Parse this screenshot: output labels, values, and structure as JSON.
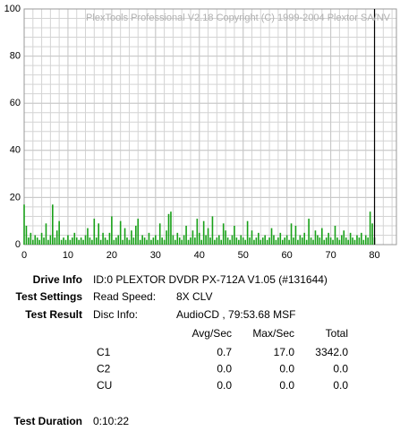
{
  "chart_data": {
    "type": "bar",
    "annotation": "PlexTools Professional V2.18 Copyright (C) 1999-2004 Plextor SA/NV",
    "x": [
      0,
      0.5,
      1,
      1.5,
      2,
      2.5,
      3,
      3.5,
      4,
      4.5,
      5,
      5.5,
      6,
      6.5,
      7,
      7.5,
      8,
      8.5,
      9,
      9.5,
      10,
      10.5,
      11,
      11.5,
      12,
      12.5,
      13,
      13.5,
      14,
      14.5,
      15,
      15.5,
      16,
      16.5,
      17,
      17.5,
      18,
      18.5,
      19,
      19.5,
      20,
      20.5,
      21,
      21.5,
      22,
      22.5,
      23,
      23.5,
      24,
      24.5,
      25,
      25.5,
      26,
      26.5,
      27,
      27.5,
      28,
      28.5,
      29,
      29.5,
      30,
      30.5,
      31,
      31.5,
      32,
      32.5,
      33,
      33.5,
      34,
      34.5,
      35,
      35.5,
      36,
      36.5,
      37,
      37.5,
      38,
      38.5,
      39,
      39.5,
      40,
      40.5,
      41,
      41.5,
      42,
      42.5,
      43,
      43.5,
      44,
      44.5,
      45,
      45.5,
      46,
      46.5,
      47,
      47.5,
      48,
      48.5,
      49,
      49.5,
      50,
      50.5,
      51,
      51.5,
      52,
      52.5,
      53,
      53.5,
      54,
      54.5,
      55,
      55.5,
      56,
      56.5,
      57,
      57.5,
      58,
      58.5,
      59,
      59.5,
      60,
      60.5,
      61,
      61.5,
      62,
      62.5,
      63,
      63.5,
      64,
      64.5,
      65,
      65.5,
      66,
      66.5,
      67,
      67.5,
      68,
      68.5,
      69,
      69.5,
      70,
      70.5,
      71,
      71.5,
      72,
      72.5,
      73,
      73.5,
      74,
      74.5,
      75,
      75.5,
      76,
      76.5,
      77,
      77.5,
      78,
      78.5,
      79,
      79.5,
      80
    ],
    "values": [
      17,
      8,
      3,
      5,
      2,
      4,
      3,
      2,
      5,
      3,
      9,
      2,
      4,
      17,
      3,
      6,
      10,
      2,
      3,
      2,
      4,
      2,
      3,
      5,
      3,
      2,
      3,
      2,
      4,
      7,
      3,
      2,
      11,
      3,
      9,
      2,
      5,
      3,
      2,
      5,
      12,
      2,
      3,
      4,
      10,
      2,
      7,
      3,
      2,
      6,
      3,
      8,
      11,
      2,
      4,
      3,
      2,
      5,
      2,
      3,
      4,
      2,
      9,
      3,
      2,
      6,
      13,
      14,
      4,
      2,
      5,
      3,
      2,
      4,
      8,
      2,
      3,
      6,
      3,
      11,
      5,
      2,
      10,
      4,
      7,
      3,
      12,
      2,
      3,
      4,
      2,
      9,
      6,
      3,
      2,
      4,
      8,
      3,
      2,
      4,
      3,
      2,
      10,
      3,
      6,
      2,
      3,
      5,
      2,
      3,
      4,
      2,
      3,
      7,
      4,
      2,
      3,
      5,
      2,
      3,
      4,
      2,
      9,
      3,
      8,
      2,
      4,
      3,
      5,
      2,
      11,
      3,
      2,
      6,
      4,
      3,
      7,
      2,
      3,
      5,
      3,
      2,
      8,
      3,
      2,
      4,
      6,
      3,
      2,
      5,
      3,
      2,
      4,
      3,
      5,
      2,
      4,
      3,
      14,
      9,
      3
    ],
    "color": "#18a018",
    "end_line": 80,
    "xlim": [
      0,
      85
    ],
    "xticks": [
      0,
      10,
      20,
      30,
      40,
      50,
      60,
      70,
      80
    ],
    "ylim": [
      0,
      100
    ],
    "yticks": [
      0,
      20,
      40,
      60,
      80,
      100
    ],
    "grid": true
  },
  "info": {
    "drive_info": {
      "label": "Drive Info",
      "value": "ID:0 PLEXTOR DVDR PX-712A V1.05 (#131644)"
    },
    "test_settings": {
      "label": "Test Settings",
      "key": "Read Speed:",
      "value": "8X CLV"
    },
    "test_result": {
      "label": "Test Result",
      "key": "Disc Info:",
      "value": "AudioCD , 79:53.68 MSF",
      "columns": [
        "Avg/Sec",
        "Max/Sec",
        "Total"
      ],
      "rows": [
        [
          "C1",
          "0.7",
          "17.0",
          "3342.0"
        ],
        [
          "C2",
          "0.0",
          "0.0",
          "0.0"
        ],
        [
          "CU",
          "0.0",
          "0.0",
          "0.0"
        ]
      ]
    },
    "test_duration": {
      "label": "Test Duration",
      "value": "0:10:22"
    }
  }
}
